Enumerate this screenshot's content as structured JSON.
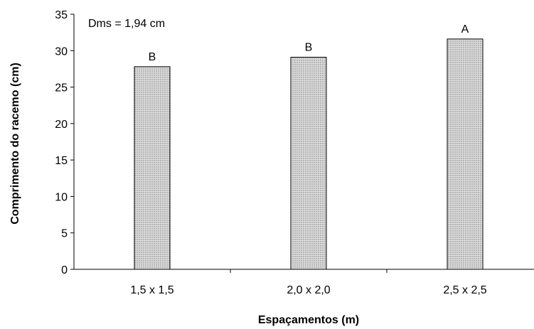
{
  "chart_data": {
    "type": "bar",
    "categories": [
      "1,5 x 1,5",
      "2,0 x 2,0",
      "2,5 x 2,5"
    ],
    "values": [
      27.8,
      29.1,
      31.6
    ],
    "bar_labels": [
      "B",
      "B",
      "A"
    ],
    "xlabel": "Espaçamentos (m)",
    "ylabel": "Comprimento do racemo (cm)",
    "ylim": [
      0,
      35
    ],
    "yticks": [
      "0",
      "5",
      "10",
      "15",
      "20",
      "25",
      "30",
      "35"
    ],
    "annotation": "Dms = 1,94 cm",
    "grid": false,
    "legend": "none",
    "colors": {
      "bar_fill": "#dcdcdc",
      "bar_dots": "#555555",
      "bar_stroke": "#000000",
      "axis": "#000000"
    }
  }
}
